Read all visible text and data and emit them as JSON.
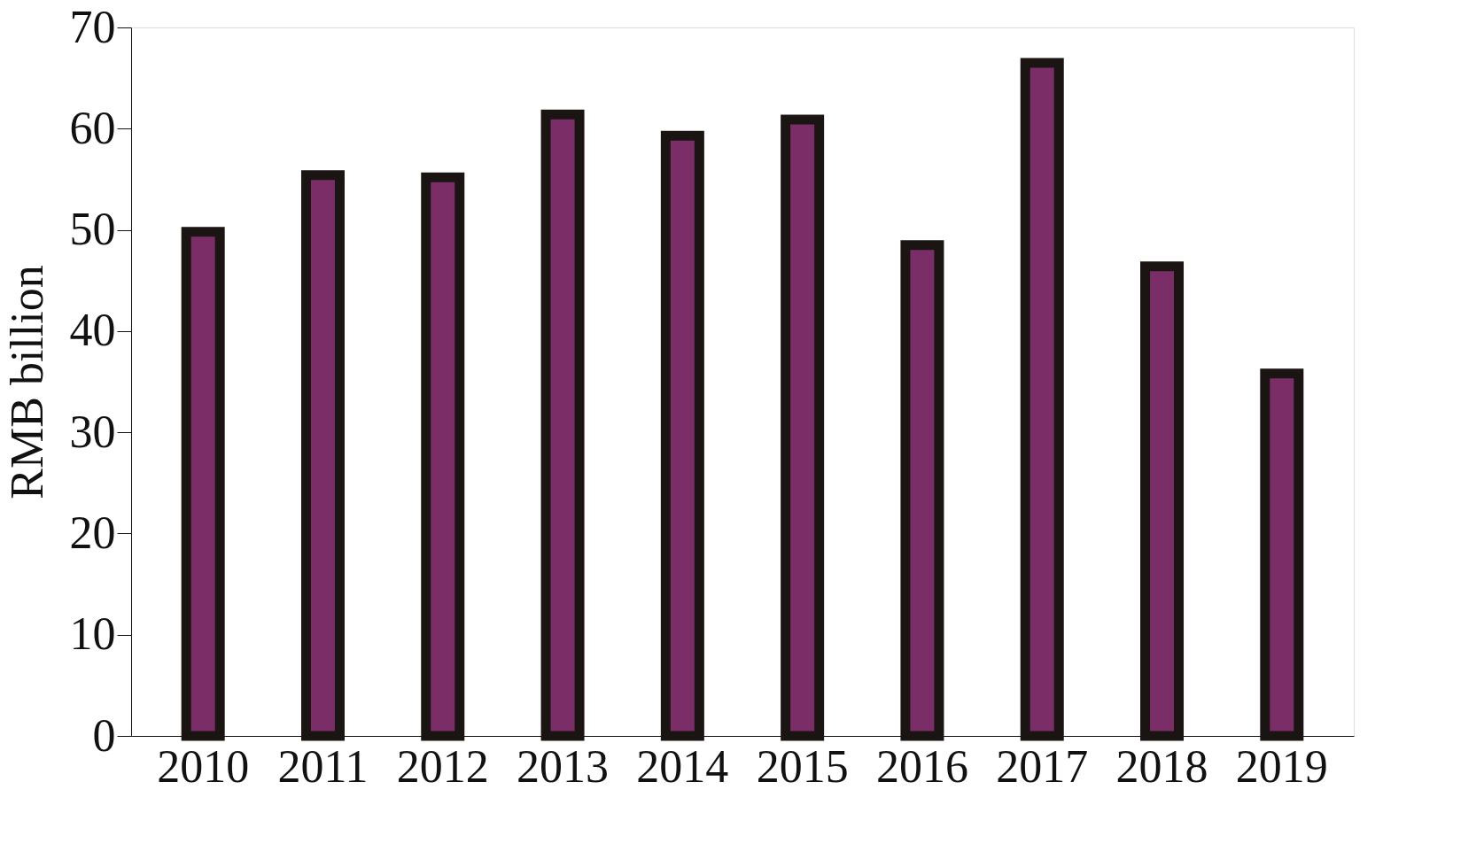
{
  "chart_data": {
    "type": "bar",
    "ylabel": "RMB billion",
    "categories": [
      "2010",
      "2011",
      "2012",
      "2013",
      "2014",
      "2015",
      "2016",
      "2017",
      "2018",
      "2019"
    ],
    "values": [
      49.8,
      55.4,
      55.2,
      61.4,
      59.3,
      60.9,
      48.5,
      66.5,
      46.4,
      35.8
    ],
    "color": "#7b2d68",
    "ylim": [
      0,
      70
    ],
    "yticks": [
      0,
      10,
      20,
      30,
      40,
      50,
      60,
      70
    ],
    "grid": false,
    "legend": false
  }
}
